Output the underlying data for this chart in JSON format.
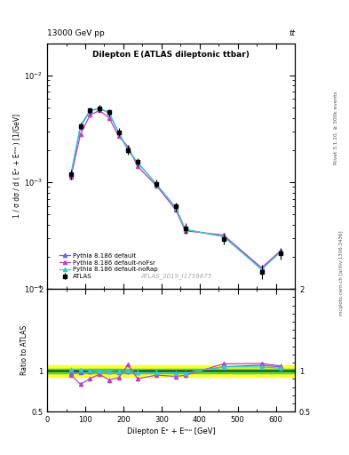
{
  "title_top": "13000 GeV pp",
  "title_top_right": "tt",
  "main_title": "Dilepton E (ATLAS dileptonic ttbar)",
  "watermark": "ATLAS_2019_I1759875",
  "ylabel_main": "1 / σ dσ / d ( Eᵉ + Eᵐᵘ ) [1/GeV]",
  "ylabel_ratio": "Ratio to ATLAS",
  "xlabel": "Dilepton Eᵉ + Eᵐᵘ [GeV]",
  "right_label_top": "Rivet 3.1.10, ≥ 300k events",
  "right_label_bot": "mcplots.cern.ch [arXiv:1306.3436]",
  "xlim": [
    0,
    650
  ],
  "ylim_main": [
    0.0001,
    0.02
  ],
  "ylim_ratio": [
    0.5,
    2.0
  ],
  "atlas_x": [
    62.5,
    87.5,
    112.5,
    137.5,
    162.5,
    187.5,
    212.5,
    237.5,
    287.5,
    337.5,
    362.5,
    462.5,
    562.5,
    612.5
  ],
  "atlas_y": [
    0.00118,
    0.00335,
    0.0047,
    0.0049,
    0.0045,
    0.00295,
    0.002,
    0.00155,
    0.00097,
    0.00059,
    0.00037,
    0.000295,
    0.000145,
    0.000215
  ],
  "atlas_yerr": [
    0.00012,
    0.00025,
    0.0003,
    0.00035,
    0.00035,
    0.00025,
    0.00018,
    0.00013,
    8.5e-05,
    5.5e-05,
    4e-05,
    3.5e-05,
    2.2e-05,
    2.8e-05
  ],
  "pythia_default_x": [
    62.5,
    87.5,
    112.5,
    137.5,
    162.5,
    187.5,
    212.5,
    237.5,
    287.5,
    337.5,
    362.5,
    462.5,
    562.5,
    612.5
  ],
  "pythia_default_y": [
    0.00115,
    0.0033,
    0.00465,
    0.0049,
    0.00445,
    0.0029,
    0.00198,
    0.00152,
    0.00095,
    0.000575,
    0.00036,
    0.00031,
    0.000155,
    0.000225
  ],
  "pythia_nofsr_x": [
    62.5,
    87.5,
    112.5,
    137.5,
    162.5,
    187.5,
    212.5,
    237.5,
    287.5,
    337.5,
    362.5,
    462.5,
    562.5,
    612.5
  ],
  "pythia_nofsr_y": [
    0.00112,
    0.0028,
    0.00425,
    0.0047,
    0.004,
    0.0027,
    0.00215,
    0.0014,
    0.00092,
    0.00055,
    0.00035,
    0.00032,
    0.000158,
    0.000228
  ],
  "pythia_norap_x": [
    62.5,
    87.5,
    112.5,
    137.5,
    162.5,
    187.5,
    212.5,
    237.5,
    287.5,
    337.5,
    362.5,
    462.5,
    562.5,
    612.5
  ],
  "pythia_norap_y": [
    0.0012,
    0.0034,
    0.00472,
    0.0049,
    0.00448,
    0.00292,
    0.002,
    0.00152,
    0.00095,
    0.000575,
    0.00036,
    0.00031,
    0.000152,
    0.000222
  ],
  "color_atlas": "#000000",
  "color_default": "#6666ee",
  "color_nofsr": "#bb44bb",
  "color_norap": "#33cccc",
  "atlas_band_green": [
    0.97,
    1.03
  ],
  "atlas_band_yellow": [
    0.93,
    1.07
  ],
  "ratio_default_y": [
    0.975,
    0.985,
    0.99,
    1.0,
    0.99,
    0.983,
    0.99,
    0.981,
    0.979,
    0.974,
    0.973,
    1.049,
    1.069,
    1.047
  ],
  "ratio_nofsr_y": [
    0.949,
    0.836,
    0.904,
    0.959,
    0.889,
    0.915,
    1.075,
    0.903,
    0.948,
    0.932,
    0.946,
    1.085,
    1.09,
    1.06
  ],
  "ratio_norap_y": [
    1.017,
    1.015,
    1.004,
    1.0,
    0.996,
    0.99,
    1.0,
    0.981,
    0.979,
    0.974,
    0.973,
    1.049,
    1.048,
    1.033
  ],
  "ratio_err": 0.025
}
